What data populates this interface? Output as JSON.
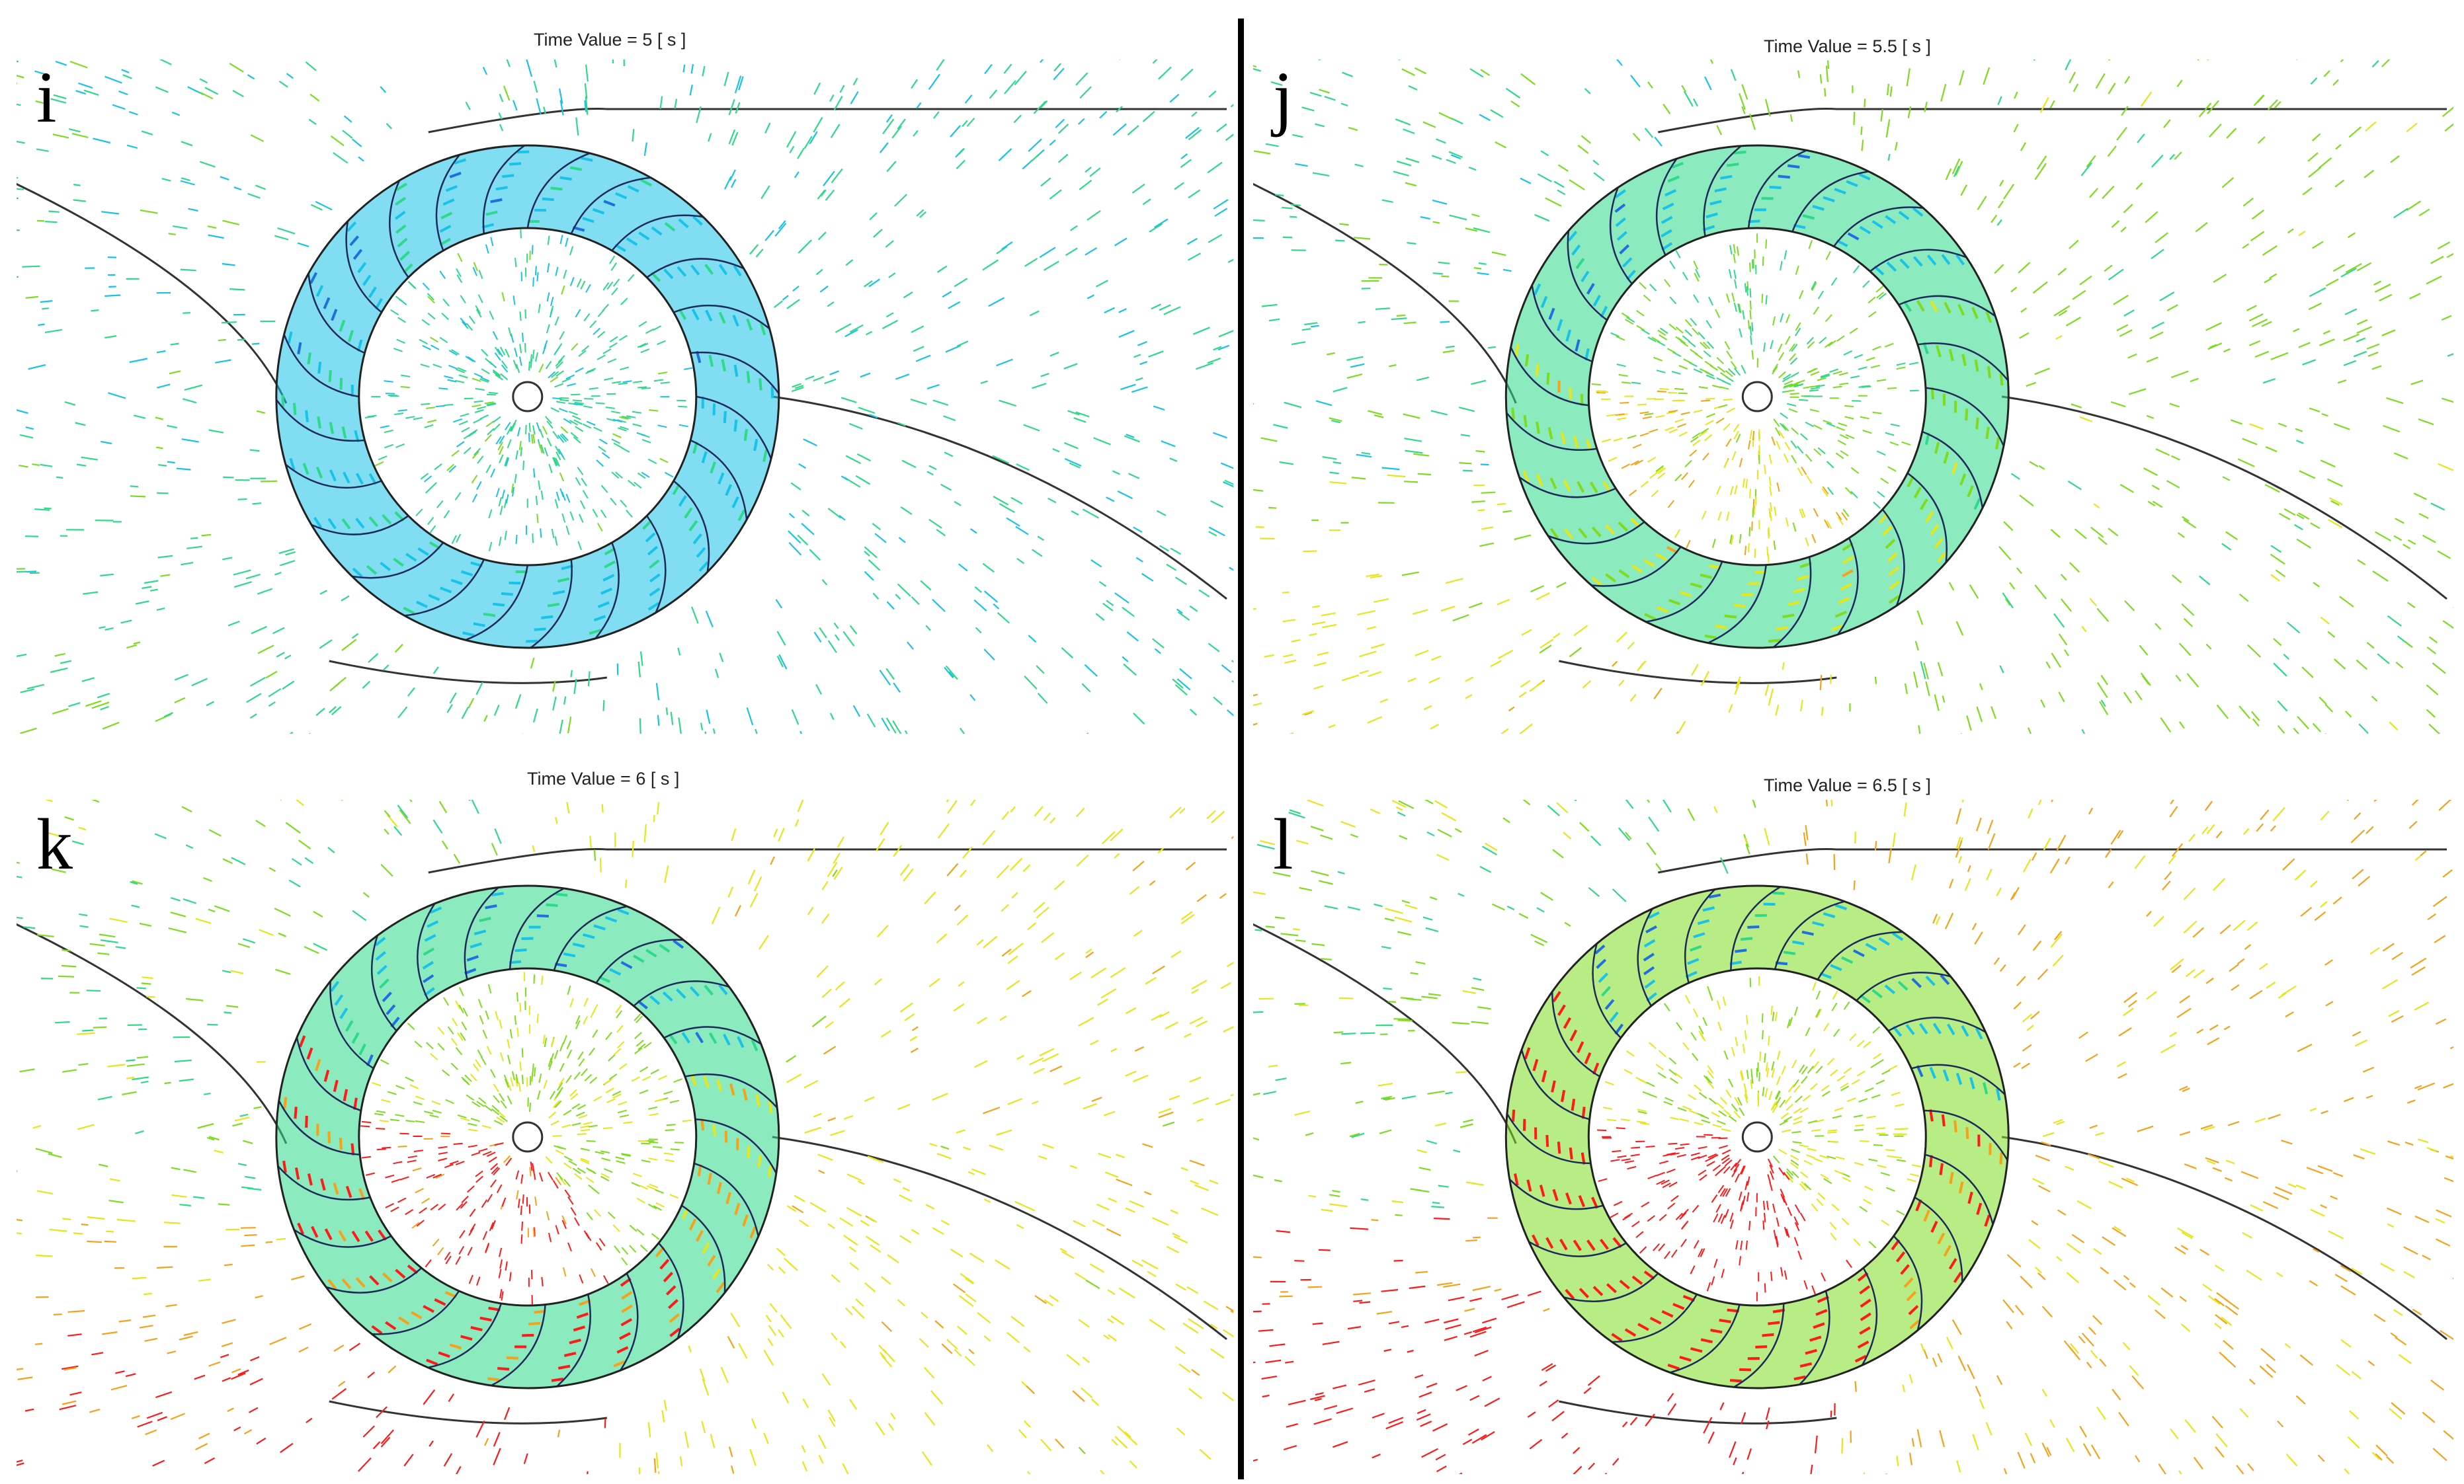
{
  "panels": [
    {
      "id": "i",
      "letter": "i",
      "time_label": "Time Value = 5 [ s ]",
      "time_s": 5,
      "rotation_deg": 0,
      "intensity": 0.05
    },
    {
      "id": "j",
      "letter": "j",
      "time_label": "Time Value = 5.5 [ s ]",
      "time_s": 5.5,
      "rotation_deg": 12,
      "intensity": 0.45
    },
    {
      "id": "k",
      "letter": "k",
      "time_label": "Time Value = 6 [ s ]",
      "time_s": 6,
      "rotation_deg": 24,
      "intensity": 0.8
    },
    {
      "id": "l",
      "letter": "l",
      "time_label": "Time Value = 6.5 [ s ]",
      "time_s": 6.5,
      "rotation_deg": 36,
      "intensity": 1.0
    }
  ],
  "colormap": [
    "#1a1aa6",
    "#1f6fe0",
    "#19c2e8",
    "#2ed98a",
    "#7ddc1f",
    "#e6e61a",
    "#f5a21a",
    "#ff1a1a"
  ]
}
